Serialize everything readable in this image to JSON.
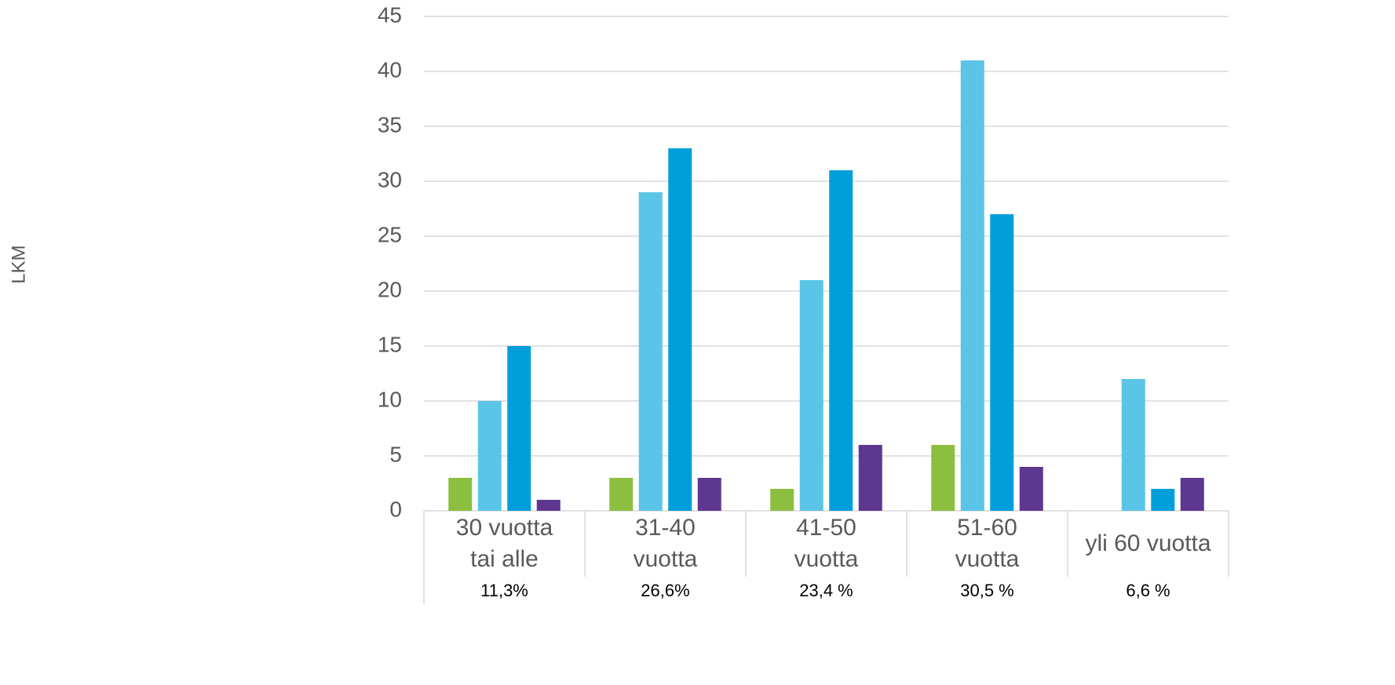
{
  "chart_data": {
    "type": "bar",
    "y_label": "LKM",
    "categories": [
      "30 vuotta\ntai alle",
      "31-40\nvuotta",
      "41-50\nvuotta",
      "51-60\nvuotta",
      "yli 60 vuotta"
    ],
    "category_notes": [
      "11,3%",
      "26,6%",
      "23,4 %",
      "30,5 %",
      "6,6 %"
    ],
    "series": [
      {
        "color": "#8cbf3f",
        "values": [
          3,
          3,
          2,
          6,
          null
        ]
      },
      {
        "color": "#5bc5e8",
        "values": [
          10,
          29,
          21,
          41,
          12
        ]
      },
      {
        "color": "#009fdb",
        "values": [
          15,
          33,
          31,
          27,
          2
        ]
      },
      {
        "color": "#5e3791",
        "values": [
          1,
          3,
          6,
          4,
          3
        ]
      }
    ],
    "ylim": [
      0,
      45
    ],
    "yticks": [
      0,
      5,
      10,
      15,
      20,
      25,
      30,
      35,
      40,
      45
    ],
    "grid": true
  }
}
